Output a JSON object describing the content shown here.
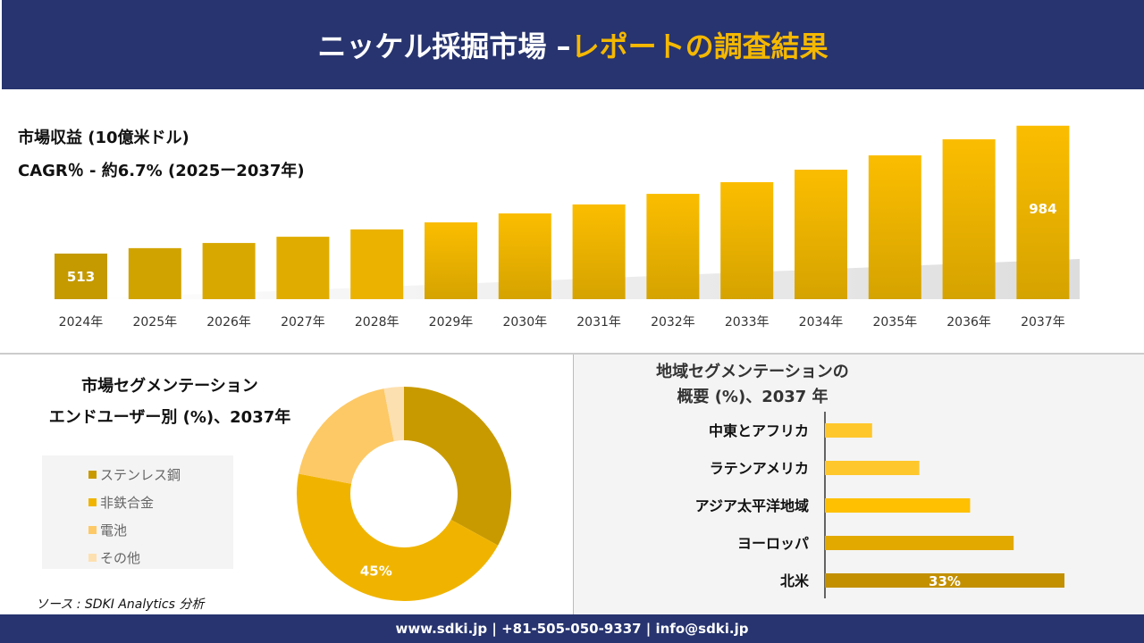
{
  "header": {
    "title_main": "ニッケル採掘市場 –",
    "title_accent": "レポートの調査結果"
  },
  "revenue": {
    "label": "市場収益 (10億米ドル)",
    "cagr": "CAGR％ - 約6.7% (2025ー2037年)"
  },
  "chart_data": [
    {
      "type": "bar",
      "categories": [
        "2024年",
        "2025年",
        "2026年",
        "2027年",
        "2028年",
        "2029年",
        "2030年",
        "2031年",
        "2032年",
        "2033年",
        "2034年",
        "2035年",
        "2036年",
        "2037年"
      ],
      "values": [
        513,
        533,
        552,
        575,
        602,
        628,
        661,
        694,
        733,
        776,
        822,
        875,
        934,
        984
      ],
      "data_labels": {
        "2024年": "513",
        "2037年": "984"
      },
      "ylabel": "市場収益 (10億米ドル)",
      "grid": false
    },
    {
      "type": "pie",
      "title": "市場セグメンテーション エンドユーザー別 (%)、2037年",
      "categories": [
        "ステンレス鋼",
        "非鉄合金",
        "電池",
        "その他"
      ],
      "values": [
        33,
        45,
        19,
        3
      ],
      "colors": [
        "#c99a00",
        "#f0b400",
        "#fdc966",
        "#fde0b0"
      ],
      "data_labels": {
        "非鉄合金": "45%"
      },
      "legend": "left"
    },
    {
      "type": "bar",
      "orientation": "horizontal",
      "title": "地域セグメンテーションの 概要 (%)、2037 年",
      "categories": [
        "中東とアフリカ",
        "ラテンアメリカ",
        "アジア太平洋地域",
        "ヨーロッパ",
        "北米"
      ],
      "values": [
        6.5,
        13,
        20,
        26,
        33
      ],
      "colors": [
        "#fec72c",
        "#fec72c",
        "#fec000",
        "#e2a900",
        "#c39000"
      ],
      "data_labels": {
        "北米": "33%"
      }
    }
  ],
  "segment": {
    "title_line1": "市場セグメンテーション",
    "title_line2": "エンドユーザー別 (%)、2037年"
  },
  "region": {
    "title_line1": "地域セグメンテーションの",
    "title_line2": "概要 (%)、2037 年"
  },
  "source": "ソース : SDKI Analytics 分析",
  "footer": "www.sdki.jp | +81-505-050-9337 | info@sdki.jp"
}
